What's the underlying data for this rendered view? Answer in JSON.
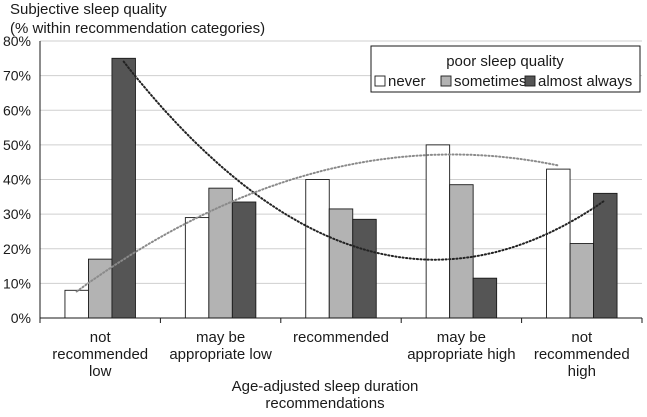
{
  "chart_data": {
    "type": "bar",
    "ylabel": [
      "Subjective sleep quality",
      "(% within recommendation categories)"
    ],
    "xlabel": [
      "Age-adjusted sleep duration",
      "recommendations"
    ],
    "categories": [
      [
        "not",
        "recommended",
        "low"
      ],
      [
        "may be",
        "appropriate low"
      ],
      [
        "recommended"
      ],
      [
        "may be",
        "appropriate high"
      ],
      [
        "not",
        "recommended",
        "high"
      ]
    ],
    "ylim": [
      0,
      80
    ],
    "yticks": [
      "0%",
      "10%",
      "20%",
      "30%",
      "40%",
      "50%",
      "60%",
      "70%",
      "80%"
    ],
    "grid": true,
    "legend": {
      "title": "poor sleep quality",
      "position": "top-right"
    },
    "series": [
      {
        "name": "never",
        "values": [
          8,
          29,
          40,
          50,
          43
        ],
        "color": "#ffffff"
      },
      {
        "name": "sometimes",
        "values": [
          17,
          37.5,
          31.5,
          38.5,
          21.5
        ],
        "color": "#b3b3b3"
      },
      {
        "name": "almost always",
        "values": [
          75,
          33.5,
          28.5,
          11.5,
          36
        ],
        "color": "#555555"
      }
    ],
    "trendlines": [
      {
        "series": "almost always",
        "style": "dotted",
        "color": "#222222"
      },
      {
        "series": "never",
        "style": "dotted",
        "color": "#8a8a8a"
      }
    ]
  }
}
